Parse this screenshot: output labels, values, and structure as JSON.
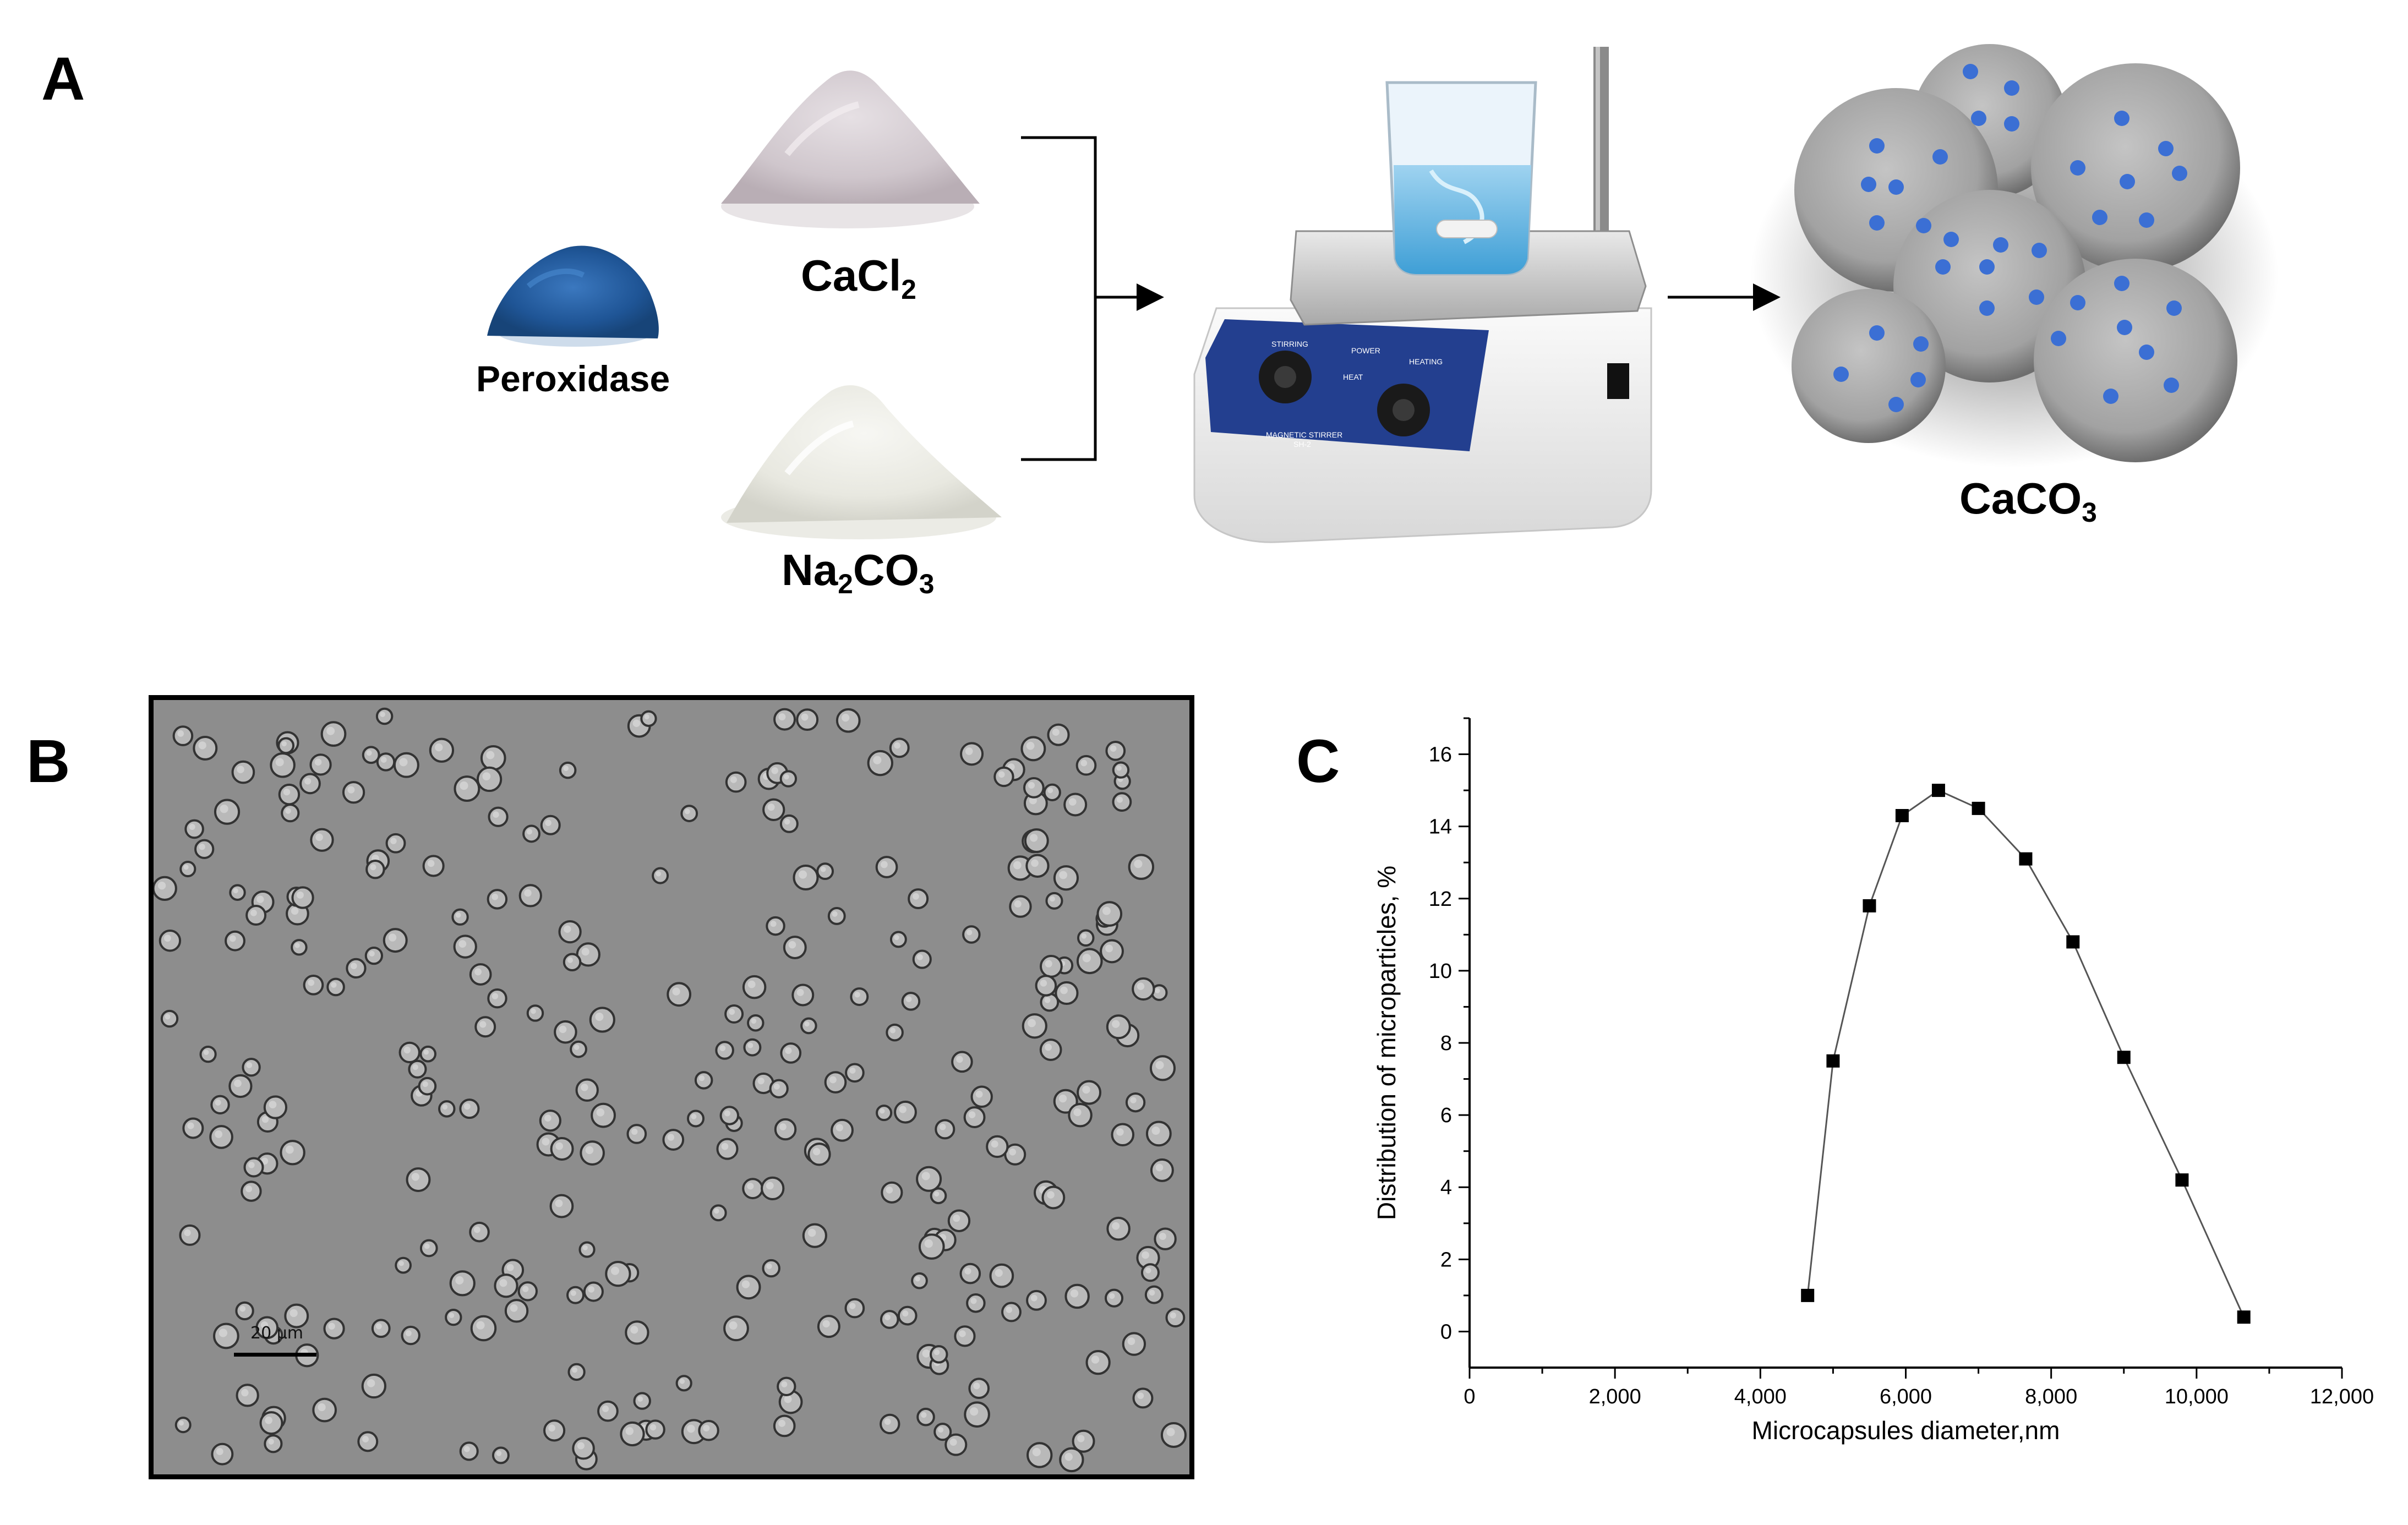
{
  "panels": {
    "a": "A",
    "b": "B",
    "c": "C"
  },
  "reagents": {
    "peroxidase": "Peroxidase",
    "cacl2": {
      "base": "CaCl",
      "sub": "2"
    },
    "na2co3": {
      "part1": "Na",
      "sub1": "2",
      "part2": "CO",
      "sub2": "3"
    },
    "caco3": {
      "base": "CaCO",
      "sub": "3"
    }
  },
  "stirrer": {
    "stirring": "STIRRING",
    "power": "POWER",
    "heat": "HEAT",
    "heating": "HEATING",
    "brand": "MAGNETIC STIRRER",
    "model": "SH-2"
  },
  "micrograph": {
    "scale_label": "20 µm"
  },
  "colors": {
    "peroxidase": "#2f6fb0",
    "enzyme_dot": "#3b6fd4",
    "particle": "#a8a8a8",
    "stirrer_panel": "#233f8f",
    "line": "#555555"
  },
  "chart_data": {
    "type": "line",
    "xlabel": "Microcapsules diameter,nm",
    "ylabel": "Distribution of microparticles, %",
    "xlim": [
      0,
      12000
    ],
    "ylim": [
      -1,
      17
    ],
    "xticks": [
      "0",
      "2,000",
      "4,000",
      "6,000",
      "8,000",
      "10,000",
      "12,000"
    ],
    "yticks": [
      "0",
      "2",
      "4",
      "6",
      "8",
      "10",
      "12",
      "14",
      "16"
    ],
    "x": [
      4650,
      5000,
      5500,
      5950,
      6450,
      7000,
      7650,
      8300,
      9000,
      9800,
      10650
    ],
    "y": [
      1.0,
      7.5,
      11.8,
      14.3,
      15.0,
      14.5,
      13.1,
      10.8,
      7.6,
      4.2,
      0.4
    ],
    "marker": "square",
    "grid": false
  }
}
